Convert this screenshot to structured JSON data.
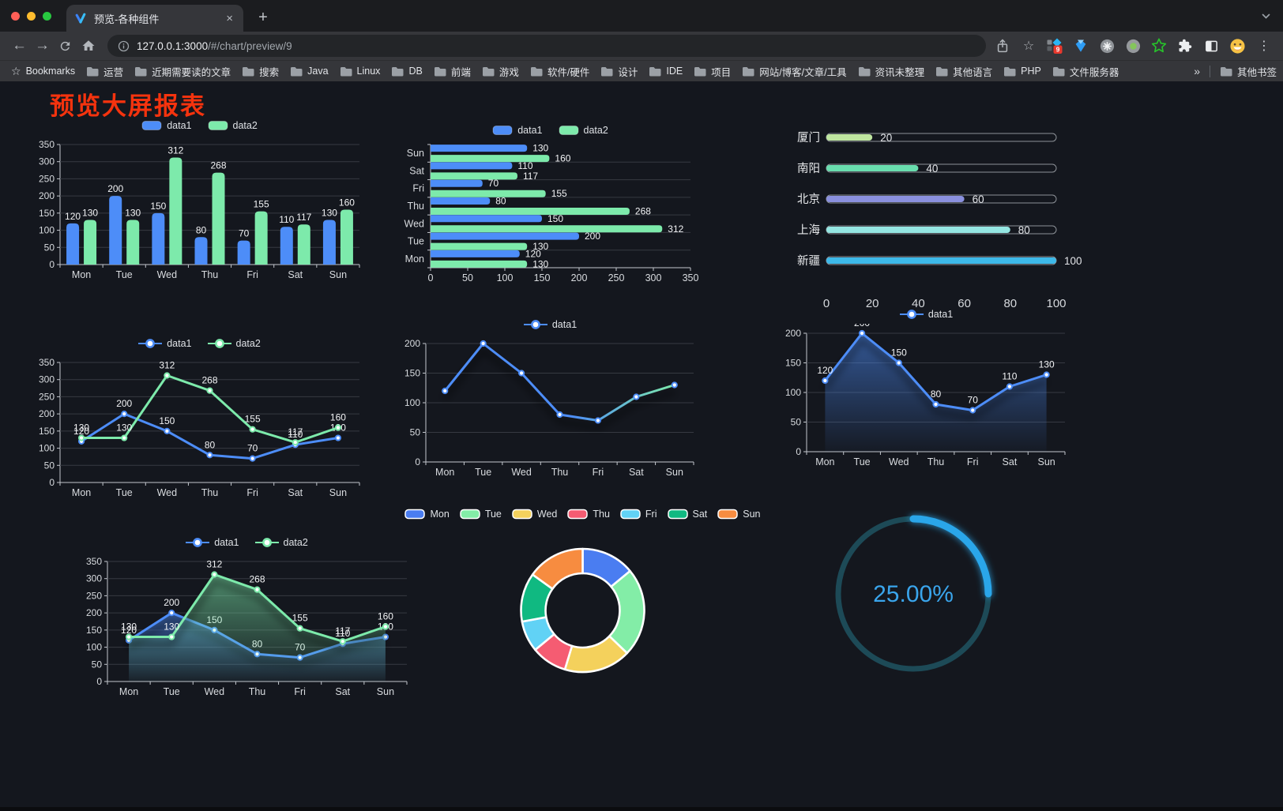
{
  "browser": {
    "tab_title": "预览-各种组件",
    "url_host": "127.0.0.1:3000",
    "url_path": "/#/chart/preview/9",
    "bookmarks_label": "Bookmarks",
    "bookmarks": [
      "运营",
      "近期需要读的文章",
      "搜索",
      "Java",
      "Linux",
      "DB",
      "前端",
      "游戏",
      "软件/硬件",
      "设计",
      "IDE",
      "项目",
      "网站/博客/文章/工具",
      "资讯未整理",
      "其他语言",
      "PHP",
      "文件服务器"
    ],
    "other_bookmarks_label": "其他书签",
    "extension_badge": "9",
    "icons": {
      "back": "←",
      "forward": "→",
      "close": "×",
      "new_tab": "+",
      "menu": "⋮",
      "star": "☆",
      "bookmarks_star": "☆",
      "overflow": "»"
    }
  },
  "page": {
    "title": "预览大屏报表",
    "title_color": "#f5330e",
    "background": "#14171e"
  },
  "theme": {
    "axis_line": "#c3c7cd",
    "grid_line": "#363a42",
    "tick_label": "#d8dbdf",
    "value_label": "#f2f3f5",
    "legend_text": "#dfe2e6"
  },
  "chart_data": [
    {
      "id": "grouped-bar",
      "type": "bar",
      "categories": [
        "Mon",
        "Tue",
        "Wed",
        "Thu",
        "Fri",
        "Sat",
        "Sun"
      ],
      "series": [
        {
          "name": "data1",
          "color": "#4d8df8",
          "values": [
            120,
            200,
            150,
            80,
            70,
            110,
            130
          ]
        },
        {
          "name": "data2",
          "color": "#7deaab",
          "values": [
            130,
            130,
            312,
            268,
            155,
            117,
            160
          ]
        }
      ],
      "ylim": [
        0,
        350
      ],
      "ytick_step": 50,
      "show_values": true,
      "grid": true,
      "legend": "pill",
      "legend_position": "top"
    },
    {
      "id": "grouped-hbar",
      "type": "hbar",
      "categories": [
        "Mon",
        "Tue",
        "Wed",
        "Thu",
        "Fri",
        "Sat",
        "Sun"
      ],
      "series": [
        {
          "name": "data1",
          "color": "#4d8df8",
          "values": [
            120,
            200,
            150,
            80,
            70,
            110,
            130
          ]
        },
        {
          "name": "data2",
          "color": "#7deaab",
          "values": [
            130,
            130,
            312,
            268,
            155,
            117,
            160
          ]
        }
      ],
      "xlim": [
        0,
        350
      ],
      "xtick_step": 50,
      "show_values": true,
      "grid": true,
      "legend": "pill",
      "legend_position": "top"
    },
    {
      "id": "city-progress",
      "type": "progress",
      "items": [
        {
          "label": "厦门",
          "value": 20,
          "color": "#bfe6a0"
        },
        {
          "label": "南阳",
          "value": 40,
          "color": "#69ddae"
        },
        {
          "label": "北京",
          "value": 60,
          "color": "#8a90de"
        },
        {
          "label": "上海",
          "value": 80,
          "color": "#94e6e2"
        },
        {
          "label": "新疆",
          "value": 100,
          "color": "#3db9e9"
        }
      ],
      "xlim": [
        0,
        100
      ],
      "xticks": [
        0,
        20,
        40,
        60,
        80,
        100
      ]
    },
    {
      "id": "line-two",
      "type": "line",
      "categories": [
        "Mon",
        "Tue",
        "Wed",
        "Thu",
        "Fri",
        "Sat",
        "Sun"
      ],
      "series": [
        {
          "name": "data1",
          "color": "#4d8df8",
          "values": [
            120,
            200,
            150,
            80,
            70,
            110,
            130
          ]
        },
        {
          "name": "data2",
          "color": "#7deaab",
          "values": [
            130,
            130,
            312,
            268,
            155,
            117,
            160
          ]
        }
      ],
      "ylim": [
        0,
        350
      ],
      "ytick_step": 50,
      "show_values": true,
      "grid": true,
      "legend": "line",
      "legend_position": "top"
    },
    {
      "id": "line-gradient",
      "type": "line",
      "categories": [
        "Mon",
        "Tue",
        "Wed",
        "Thu",
        "Fri",
        "Sat",
        "Sun"
      ],
      "series": [
        {
          "name": "data1",
          "color": "#4d8df8",
          "gradient": [
            "#4d8df8",
            "#7deaab"
          ],
          "values": [
            120,
            200,
            150,
            80,
            70,
            110,
            130
          ]
        }
      ],
      "ylim": [
        0,
        200
      ],
      "ytick_step": 50,
      "show_values": false,
      "grid": true,
      "legend": "line",
      "legend_position": "top",
      "shadow": true
    },
    {
      "id": "area-one",
      "type": "line",
      "categories": [
        "Mon",
        "Tue",
        "Wed",
        "Thu",
        "Fri",
        "Sat",
        "Sun"
      ],
      "series": [
        {
          "name": "data1",
          "color": "#4d8df8",
          "area": true,
          "values": [
            120,
            200,
            150,
            80,
            70,
            110,
            130
          ]
        }
      ],
      "ylim": [
        0,
        200
      ],
      "ytick_step": 50,
      "show_values": true,
      "grid": true,
      "legend": "line",
      "legend_position": "top",
      "shadow": true
    },
    {
      "id": "area-two",
      "type": "line",
      "categories": [
        "Mon",
        "Tue",
        "Wed",
        "Thu",
        "Fri",
        "Sat",
        "Sun"
      ],
      "series": [
        {
          "name": "data1",
          "color": "#4d8df8",
          "area": true,
          "values": [
            120,
            200,
            150,
            80,
            70,
            110,
            130
          ]
        },
        {
          "name": "data2",
          "color": "#7deaab",
          "area": true,
          "values": [
            130,
            130,
            312,
            268,
            155,
            117,
            160
          ]
        }
      ],
      "ylim": [
        0,
        350
      ],
      "ytick_step": 50,
      "show_values": true,
      "grid": true,
      "legend": "line",
      "legend_position": "top",
      "shadow": true
    },
    {
      "id": "week-donut",
      "type": "donut",
      "items": [
        {
          "label": "Mon",
          "value": 120,
          "color": "#4a7df1"
        },
        {
          "label": "Tue",
          "value": 200,
          "color": "#83eda7"
        },
        {
          "label": "Wed",
          "value": 150,
          "color": "#f4d15c"
        },
        {
          "label": "Thu",
          "value": 80,
          "color": "#f55c72"
        },
        {
          "label": "Fri",
          "value": 70,
          "color": "#61d2f5"
        },
        {
          "label": "Sat",
          "value": 110,
          "color": "#10b981"
        },
        {
          "label": "Sun",
          "value": 130,
          "color": "#f78c40"
        }
      ],
      "legend": "pill-border",
      "legend_position": "top"
    },
    {
      "id": "percent-gauge",
      "type": "gauge",
      "value": 25,
      "max": 100,
      "label": "25.00%",
      "color": "#2ca6ea",
      "track_color": "#1d4a57",
      "text_color": "#3aa5ec"
    }
  ]
}
